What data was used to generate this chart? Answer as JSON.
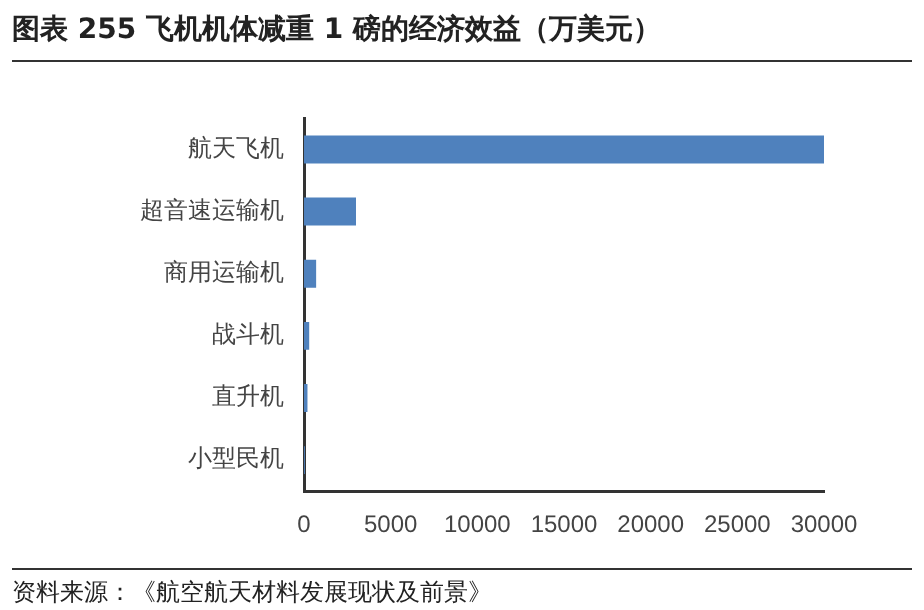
{
  "chart_data": {
    "type": "bar",
    "orientation": "horizontal",
    "title": "图表 255 飞机机体减重 1 磅的经济效益（万美元）",
    "categories": [
      "航天飞机",
      "超音速运输机",
      "商用运输机",
      "战斗机",
      "直升机",
      "小型民机"
    ],
    "values": [
      30000,
      3000,
      700,
      300,
      200,
      50
    ],
    "color": "#4f81bd",
    "xlim": [
      0,
      30000
    ],
    "xticks": [
      0,
      5000,
      10000,
      15000,
      20000,
      25000,
      30000
    ],
    "grid": false,
    "legend": false,
    "annotations": [
      "资料来源：《航空航天材料发展现状及前景》"
    ]
  }
}
